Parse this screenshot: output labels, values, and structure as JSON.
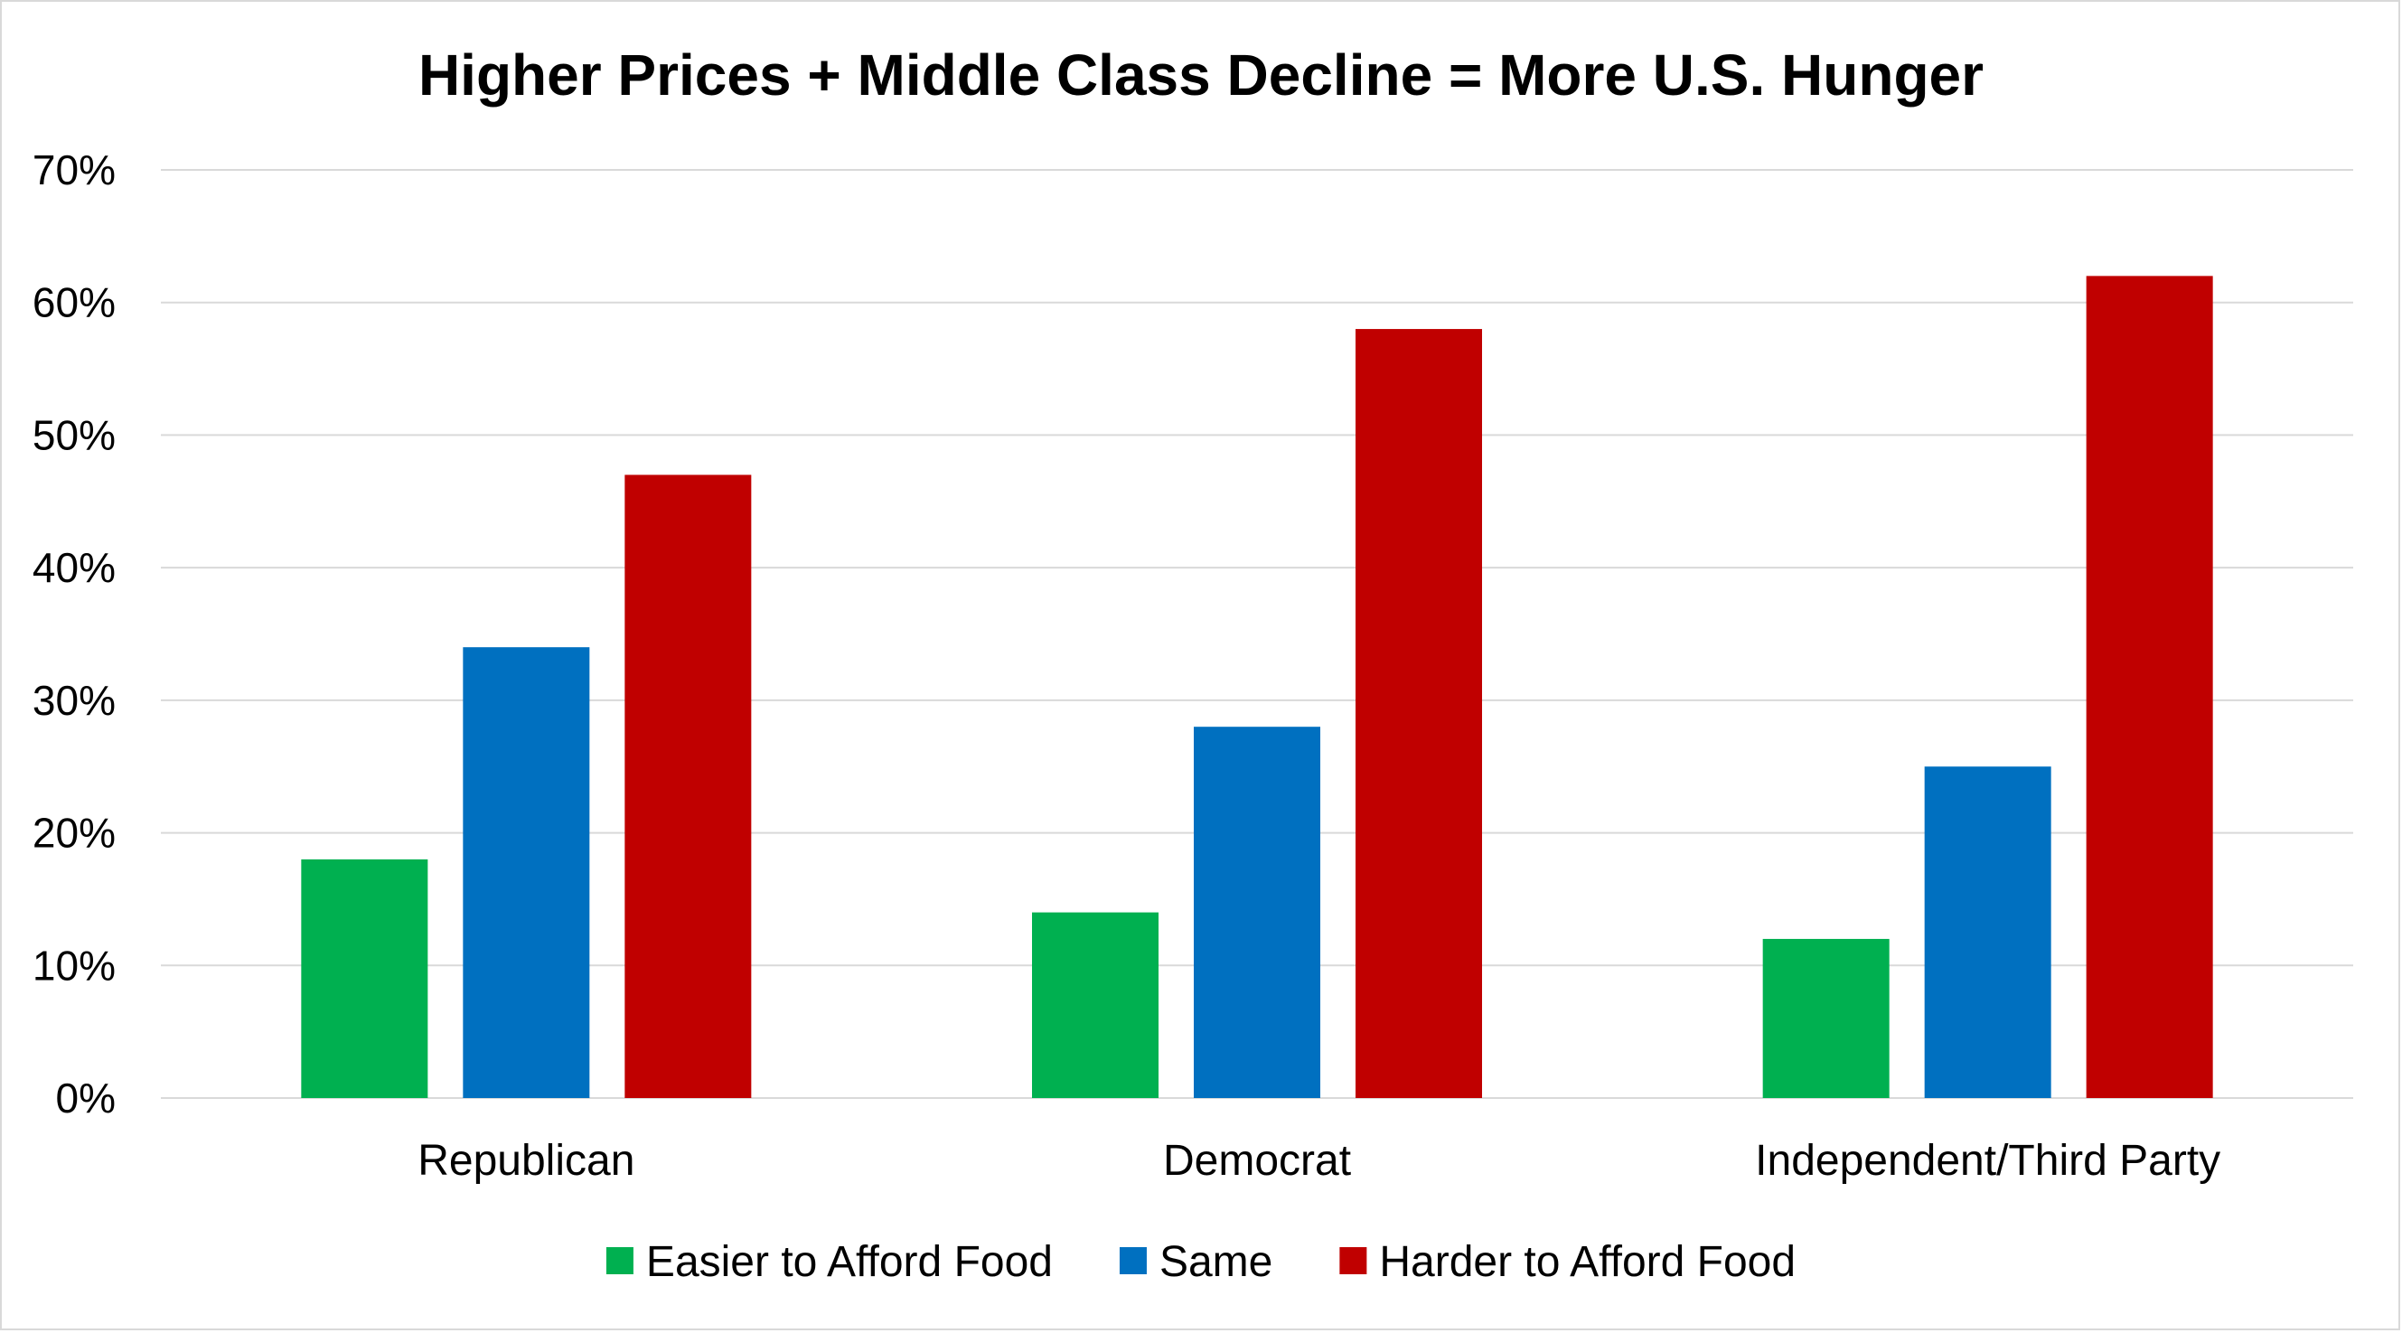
{
  "chart_data": {
    "type": "bar",
    "title": "Higher Prices  + Middle Class Decline = More U.S. Hunger",
    "xlabel": "",
    "ylabel": "",
    "categories": [
      "Republican",
      "Democrat",
      "Independent/Third Party"
    ],
    "series": [
      {
        "name": "Easier to Afford Food",
        "color": "#00b050",
        "values": [
          18,
          14,
          12
        ]
      },
      {
        "name": "Same",
        "color": "#0070c0",
        "values": [
          34,
          28,
          25
        ]
      },
      {
        "name": "Harder to Afford Food",
        "color": "#c00000",
        "values": [
          47,
          58,
          62
        ]
      }
    ],
    "ylim": [
      0,
      70
    ],
    "yticks": [
      0,
      10,
      20,
      30,
      40,
      50,
      60,
      70
    ],
    "ytick_labels": [
      "0%",
      "10%",
      "20%",
      "30%",
      "40%",
      "50%",
      "60%",
      "70%"
    ],
    "grid": true,
    "legend_position": "bottom",
    "gridline_color": "#d9d9d9",
    "frame_color": "#d9d9d9"
  }
}
